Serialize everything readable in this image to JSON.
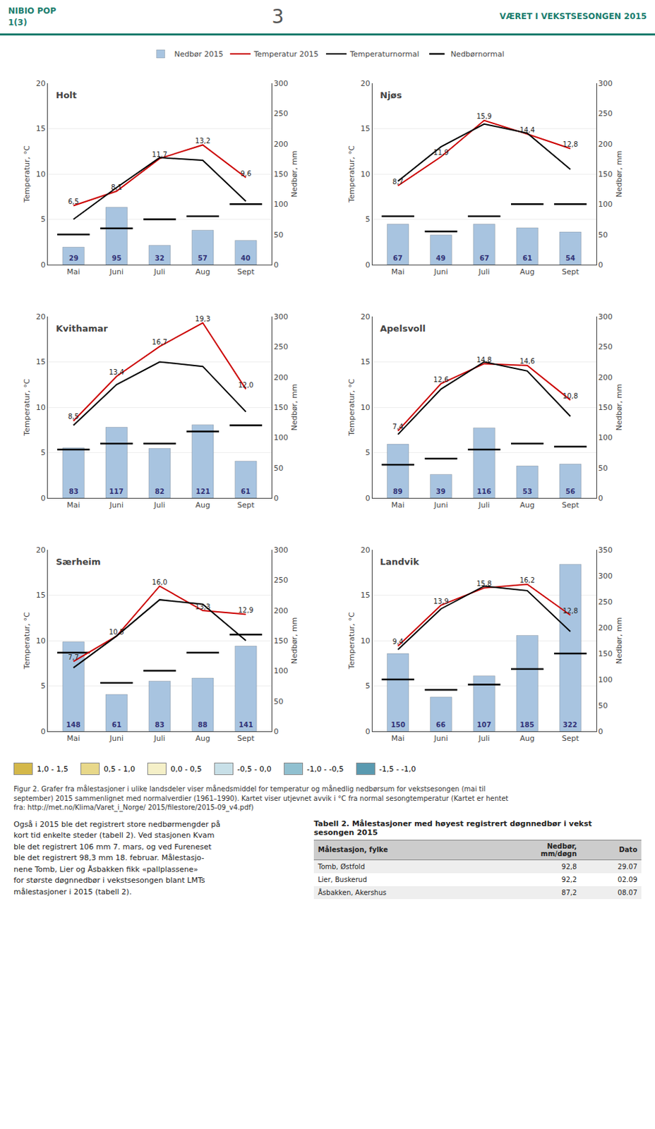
{
  "header": {
    "title_left": "NIBIO POP",
    "subtitle_left": "1(3)",
    "page": "3",
    "title_right": "VÆRET I VEKSTSESONGEN 2015",
    "color": "#1a7d6e"
  },
  "chart_data": [
    {
      "type": "bar",
      "title": "Holt",
      "legend": "top",
      "categories": [
        "Mai",
        "Juni",
        "Juli",
        "Aug",
        "Sept"
      ],
      "ylabel": "Temperatur, °C",
      "y2label": "Nedbør, mm",
      "ylim": [
        0,
        20
      ],
      "yticks": [
        0,
        5,
        10,
        15,
        20
      ],
      "y2lim": [
        0,
        300
      ],
      "y2ticks": [
        0,
        50,
        100,
        150,
        200,
        250,
        300
      ],
      "grid": true,
      "series": [
        {
          "name": "Nedbør 2015",
          "type": "bar",
          "axis": "y2",
          "color": "#a8c4e0",
          "data_labels": true,
          "values": [
            29,
            95,
            32,
            57,
            40
          ]
        },
        {
          "name": "Temperatur 2015",
          "type": "line",
          "color": "#cc0000",
          "data_labels": true,
          "values": [
            6.5,
            8.1,
            11.7,
            13.2,
            9.6
          ],
          "value_labels": [
            "6,5",
            "8,1",
            "11,7",
            "13,2",
            "9,6"
          ]
        },
        {
          "name": "Temperaturnormal",
          "type": "line",
          "color": "#000000",
          "values": [
            5.0,
            8.5,
            11.8,
            11.5,
            7.0
          ]
        },
        {
          "name": "Nedbørnormal",
          "type": "scatter",
          "axis": "y2",
          "color": "#000000",
          "marker": "line-ew",
          "values": [
            50,
            60,
            75,
            80,
            100
          ]
        }
      ]
    },
    {
      "type": "bar",
      "title": "Njøs",
      "categories": [
        "Mai",
        "Juni",
        "Juli",
        "Aug",
        "Sept"
      ],
      "ylabel": "Temperatur, °C",
      "y2label": "Nedbør, mm",
      "ylim": [
        0,
        20
      ],
      "yticks": [
        0,
        5,
        10,
        15,
        20
      ],
      "y2lim": [
        0,
        300
      ],
      "y2ticks": [
        0,
        50,
        100,
        150,
        200,
        250,
        300
      ],
      "grid": true,
      "series": [
        {
          "name": "Nedbør 2015",
          "type": "bar",
          "axis": "y2",
          "color": "#a8c4e0",
          "data_labels": true,
          "values": [
            67,
            49,
            67,
            61,
            54
          ]
        },
        {
          "name": "Temperatur 2015",
          "type": "line",
          "color": "#cc0000",
          "data_labels": true,
          "values": [
            8.7,
            11.9,
            15.9,
            14.4,
            12.8
          ],
          "value_labels": [
            "8,7",
            "11,9",
            "15,9",
            "14,4",
            "12,8"
          ]
        },
        {
          "name": "Temperaturnormal",
          "type": "line",
          "color": "#000000",
          "values": [
            9.2,
            13.0,
            15.5,
            14.5,
            10.5
          ]
        },
        {
          "name": "Nedbørnormal",
          "type": "scatter",
          "axis": "y2",
          "color": "#000000",
          "marker": "line-ew",
          "values": [
            80,
            55,
            80,
            100,
            100
          ]
        }
      ]
    },
    {
      "type": "bar",
      "title": "Kvithamar",
      "categories": [
        "Mai",
        "Juni",
        "Juli",
        "Aug",
        "Sept"
      ],
      "ylabel": "Temperatur, °C",
      "y2label": "Nedbør, mm",
      "ylim": [
        0,
        20
      ],
      "yticks": [
        0,
        5,
        10,
        15,
        20
      ],
      "y2lim": [
        0,
        300
      ],
      "y2ticks": [
        0,
        50,
        100,
        150,
        200,
        250,
        300
      ],
      "grid": true,
      "series": [
        {
          "name": "Nedbør 2015",
          "type": "bar",
          "axis": "y2",
          "color": "#a8c4e0",
          "data_labels": true,
          "values": [
            83,
            117,
            82,
            121,
            61
          ]
        },
        {
          "name": "Temperatur 2015",
          "type": "line",
          "color": "#cc0000",
          "data_labels": true,
          "values": [
            8.5,
            13.4,
            16.7,
            19.3,
            12.0
          ],
          "value_labels": [
            "8,5",
            "13,4",
            "16,7",
            "19,3",
            "12,0"
          ]
        },
        {
          "name": "Temperaturnormal",
          "type": "line",
          "color": "#000000",
          "values": [
            8.0,
            12.5,
            15.0,
            14.5,
            9.5
          ]
        },
        {
          "name": "Nedbørnormal",
          "type": "scatter",
          "axis": "y2",
          "color": "#000000",
          "marker": "line-ew",
          "values": [
            80,
            90,
            90,
            110,
            120
          ]
        }
      ]
    },
    {
      "type": "bar",
      "title": "Apelsvoll",
      "categories": [
        "Mai",
        "Juni",
        "Juli",
        "Aug",
        "Sept"
      ],
      "ylabel": "Temperatur, °C",
      "y2label": "Nedbør, mm",
      "ylim": [
        0,
        20
      ],
      "yticks": [
        0,
        5,
        10,
        15,
        20
      ],
      "y2lim": [
        0,
        300
      ],
      "y2ticks": [
        0,
        50,
        100,
        150,
        200,
        250,
        300
      ],
      "grid": true,
      "series": [
        {
          "name": "Nedbør 2015",
          "type": "bar",
          "axis": "y2",
          "color": "#a8c4e0",
          "data_labels": true,
          "values": [
            89,
            39,
            116,
            53,
            56
          ]
        },
        {
          "name": "Temperatur 2015",
          "type": "line",
          "color": "#cc0000",
          "data_labels": true,
          "values": [
            7.4,
            12.6,
            14.8,
            14.6,
            10.8
          ],
          "value_labels": [
            "7,4",
            "12,6",
            "14,8",
            "14,6",
            "10,8"
          ]
        },
        {
          "name": "Temperaturnormal",
          "type": "line",
          "color": "#000000",
          "values": [
            7.0,
            12.0,
            15.0,
            14.0,
            9.0
          ]
        },
        {
          "name": "Nedbørnormal",
          "type": "scatter",
          "axis": "y2",
          "color": "#000000",
          "marker": "line-ew",
          "values": [
            55,
            65,
            80,
            90,
            85
          ]
        }
      ]
    },
    {
      "type": "bar",
      "title": "Særheim",
      "categories": [
        "Mai",
        "Juni",
        "Juli",
        "Aug",
        "Sept"
      ],
      "ylabel": "Temperatur, °C",
      "y2label": "Nedbør, mm",
      "ylim": [
        0,
        20
      ],
      "yticks": [
        0,
        5,
        10,
        15,
        20
      ],
      "y2lim": [
        0,
        300
      ],
      "y2ticks": [
        0,
        50,
        100,
        150,
        200,
        250,
        300
      ],
      "grid": true,
      "series": [
        {
          "name": "Nedbør 2015",
          "type": "bar",
          "axis": "y2",
          "color": "#a8c4e0",
          "data_labels": true,
          "values": [
            148,
            61,
            83,
            88,
            141
          ]
        },
        {
          "name": "Temperatur 2015",
          "type": "line",
          "color": "#cc0000",
          "data_labels": true,
          "values": [
            7.7,
            10.5,
            16.0,
            13.3,
            12.9
          ],
          "value_labels": [
            "7,7",
            "10,5",
            "16,0",
            "13,3",
            "12,9"
          ]
        },
        {
          "name": "Temperaturnormal",
          "type": "line",
          "color": "#000000",
          "values": [
            7.0,
            10.5,
            14.5,
            14.0,
            10.0
          ]
        },
        {
          "name": "Nedbørnormal",
          "type": "scatter",
          "axis": "y2",
          "color": "#000000",
          "marker": "line-ew",
          "values": [
            130,
            80,
            100,
            130,
            160
          ]
        }
      ]
    },
    {
      "type": "bar",
      "title": "Landvik",
      "categories": [
        "Mai",
        "Juni",
        "Juli",
        "Aug",
        "Sept"
      ],
      "ylabel": "Temperatur, °C",
      "y2label": "Nedbør, mm",
      "ylim": [
        0,
        20
      ],
      "yticks": [
        0,
        5,
        10,
        15,
        20
      ],
      "y2lim": [
        0,
        350
      ],
      "y2ticks": [
        0,
        50,
        100,
        150,
        200,
        250,
        300,
        350
      ],
      "grid": true,
      "series": [
        {
          "name": "Nedbør 2015",
          "type": "bar",
          "axis": "y2",
          "color": "#a8c4e0",
          "data_labels": true,
          "values": [
            150,
            66,
            107,
            185,
            322
          ]
        },
        {
          "name": "Temperatur 2015",
          "type": "line",
          "color": "#cc0000",
          "data_labels": true,
          "values": [
            9.4,
            13.9,
            15.8,
            16.2,
            12.8
          ],
          "value_labels": [
            "9,4",
            "13,9",
            "15,8",
            "16,2",
            "12,8"
          ]
        },
        {
          "name": "Temperaturnormal",
          "type": "line",
          "color": "#000000",
          "values": [
            9.0,
            13.5,
            16.0,
            15.5,
            11.0
          ]
        },
        {
          "name": "Nedbørnormal",
          "type": "scatter",
          "axis": "y2",
          "color": "#000000",
          "marker": "line-ew",
          "values": [
            100,
            80,
            90,
            120,
            150
          ]
        }
      ]
    }
  ],
  "map_legend": {
    "items": [
      "1,0 - 1,5",
      "0,5 - 1,0",
      "0,0 - 0,5",
      "-0,5 - 0,0",
      "-1,0 - -0,5",
      "-1,5 - -1,0"
    ],
    "colors": [
      "#d4b84a",
      "#e8d88a",
      "#f5f0c8",
      "#c8e0e8",
      "#90c0d0",
      "#5a9ab0"
    ]
  },
  "caption": "Figur 2. Grafer fra målestasjoner i ulike landsdeler viser månedsmiddel for temperatur og månedlig nedbørsum for vekstsesongen (mai til\nseptember) 2015 sammenlignet med normalverdier (1961–1990). Kartet viser utjevnet avvik i °C fra normal sesongtemperatur (Kartet er hentet\nfra: http://met.no/Klima/Varet_i_Norge/ 2015/filestore/2015-09_v4.pdf)",
  "text": "Også i 2015 ble det registrert store nedbørmengder på\nkort tid enkelte steder (tabell 2). Ved stasjonen Kvam\nble det registrert 106 mm 7. mars, og ved Fureneset\nble det registrert 98,3 mm 18. februar. Målestasjo-\nnene Tomb, Lier og Åsbakken fikk «pallplassene»\nfor største døgnnedbør i vekstsesongen blant LMTs\nmålestasjoner i 2015 (tabell 2).",
  "table": {
    "title": "Tabell 2. Målestasjoner med høyest registrert døgnnedbør i vekst\nsesongen 2015",
    "headers": [
      "Målestasjon, fylke",
      "Nedbør,\nmm/døgn",
      "Dato"
    ],
    "rows": [
      [
        "Tomb, Østfold",
        "92,8",
        "29.07"
      ],
      [
        "Lier, Buskerud",
        "92,2",
        "02.09"
      ],
      [
        "Åsbakken, Akershus",
        "87,2",
        "08.07"
      ]
    ]
  }
}
